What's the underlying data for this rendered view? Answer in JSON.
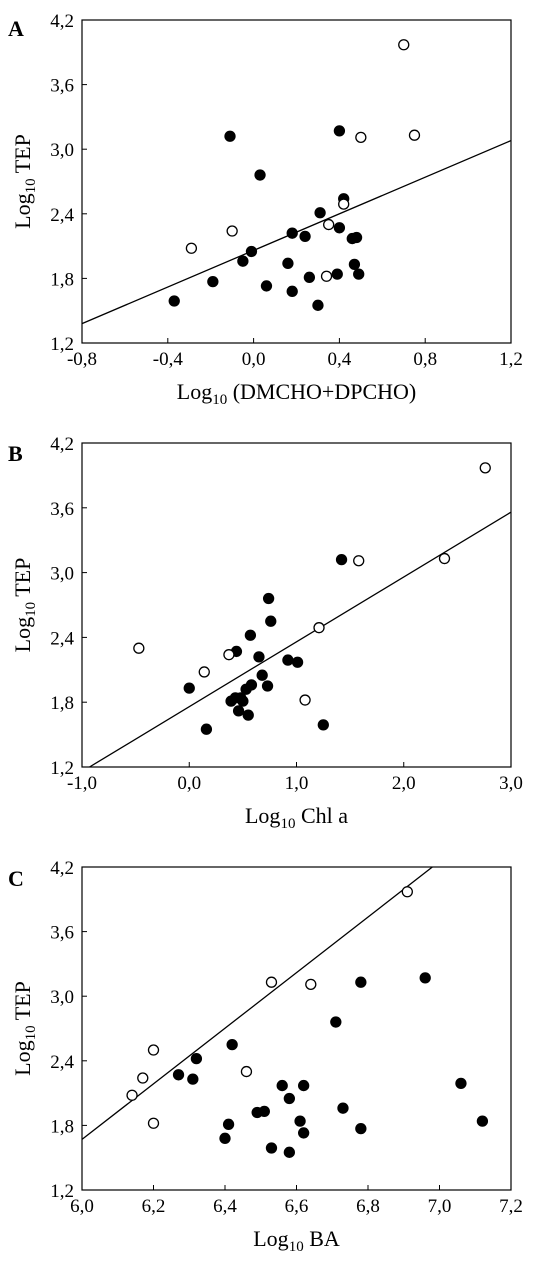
{
  "chart_data": [
    {
      "type": "scatter",
      "panel_label": "A",
      "xlabel_main": "Log",
      "xlabel_sub": "10",
      "xlabel_rest": " (DMCHO+DPCHO)",
      "ylabel_main": "Log",
      "ylabel_sub": "10",
      "ylabel_rest": " TEP",
      "xlim": [
        -0.8,
        1.2
      ],
      "ylim": [
        1.2,
        4.2
      ],
      "xticks": [
        -0.8,
        -0.4,
        0.0,
        0.4,
        0.8,
        1.2
      ],
      "xtick_labels": [
        "-0,8",
        "-0,4",
        "0,0",
        "0,4",
        "0,8",
        "1,2"
      ],
      "yticks": [
        1.2,
        1.8,
        2.4,
        3.0,
        3.6,
        4.2
      ],
      "ytick_labels": [
        "1,2",
        "1,8",
        "2,4",
        "3,0",
        "3,6",
        "4,2"
      ],
      "grid": false,
      "series": [
        {
          "marker": "filled",
          "x": [
            -0.37,
            -0.19,
            -0.11,
            -0.05,
            -0.01,
            0.03,
            0.06,
            0.16,
            0.18,
            0.18,
            0.24,
            0.26,
            0.3,
            0.31,
            0.39,
            0.4,
            0.4,
            0.42,
            0.46,
            0.47,
            0.48,
            0.49
          ],
          "y": [
            1.59,
            1.77,
            3.12,
            1.96,
            2.05,
            2.76,
            1.73,
            1.94,
            1.68,
            2.22,
            2.19,
            1.81,
            1.55,
            2.41,
            1.84,
            2.27,
            3.17,
            2.54,
            2.17,
            1.93,
            2.18,
            1.84
          ]
        },
        {
          "marker": "open",
          "x": [
            -0.29,
            -0.1,
            0.34,
            0.35,
            0.42,
            0.5,
            0.7,
            0.75
          ],
          "y": [
            2.08,
            2.24,
            1.82,
            2.3,
            2.49,
            3.11,
            3.97,
            3.13
          ]
        }
      ],
      "fit_line": {
        "x": [
          -0.8,
          1.2
        ],
        "y": [
          1.38,
          3.08
        ]
      }
    },
    {
      "type": "scatter",
      "panel_label": "B",
      "xlabel_main": "Log",
      "xlabel_sub": "10",
      "xlabel_rest": " Chl a",
      "ylabel_main": "Log",
      "ylabel_sub": "10",
      "ylabel_rest": " TEP",
      "xlim": [
        -1.0,
        3.0
      ],
      "ylim": [
        1.2,
        4.2
      ],
      "xticks": [
        -1.0,
        0.0,
        1.0,
        2.0,
        3.0
      ],
      "xtick_labels": [
        "-1,0",
        "0,0",
        "1,0",
        "2,0",
        "3,0"
      ],
      "yticks": [
        1.2,
        1.8,
        2.4,
        3.0,
        3.6,
        4.2
      ],
      "ytick_labels": [
        "1,2",
        "1,8",
        "2,4",
        "3,0",
        "3,6",
        "4,2"
      ],
      "grid": false,
      "series": [
        {
          "marker": "filled",
          "x": [
            0.0,
            0.16,
            0.39,
            0.43,
            0.44,
            0.46,
            0.48,
            0.5,
            0.53,
            0.55,
            0.57,
            0.58,
            0.65,
            0.68,
            0.73,
            0.74,
            0.76,
            0.92,
            1.01,
            1.25,
            1.42
          ],
          "y": [
            1.93,
            1.55,
            1.81,
            1.84,
            2.27,
            1.72,
            1.84,
            1.81,
            1.92,
            1.68,
            2.42,
            1.96,
            2.22,
            2.05,
            1.95,
            2.76,
            2.55,
            2.19,
            2.17,
            1.59,
            3.12
          ]
        },
        {
          "marker": "open",
          "x": [
            -0.47,
            0.14,
            0.37,
            1.08,
            1.21,
            1.58,
            2.38,
            2.76
          ],
          "y": [
            2.3,
            2.08,
            2.24,
            1.82,
            2.49,
            3.11,
            3.13,
            3.97
          ]
        }
      ],
      "fit_line": {
        "x": [
          -0.93,
          3.0
        ],
        "y": [
          1.2,
          3.56
        ]
      }
    },
    {
      "type": "scatter",
      "panel_label": "C",
      "xlabel_main": "Log",
      "xlabel_sub": "10",
      "xlabel_rest": " BA",
      "ylabel_main": "Log",
      "ylabel_sub": "10",
      "ylabel_rest": " TEP",
      "xlim": [
        6.0,
        7.2
      ],
      "ylim": [
        1.2,
        4.2
      ],
      "xticks": [
        6.0,
        6.2,
        6.4,
        6.6,
        6.8,
        7.0,
        7.2
      ],
      "xtick_labels": [
        "6,0",
        "6,2",
        "6,4",
        "6,6",
        "6,8",
        "7,0",
        "7,2"
      ],
      "yticks": [
        1.2,
        1.8,
        2.4,
        3.0,
        3.6,
        4.2
      ],
      "ytick_labels": [
        "1,2",
        "1,8",
        "2,4",
        "3,0",
        "3,6",
        "4,2"
      ],
      "grid": false,
      "series": [
        {
          "marker": "filled",
          "x": [
            6.27,
            6.31,
            6.32,
            6.4,
            6.41,
            6.42,
            6.49,
            6.51,
            6.53,
            6.56,
            6.58,
            6.58,
            6.61,
            6.62,
            6.62,
            6.71,
            6.73,
            6.78,
            6.78,
            6.96,
            7.06,
            7.12
          ],
          "y": [
            2.27,
            2.23,
            2.42,
            1.68,
            1.81,
            2.55,
            1.92,
            1.93,
            1.59,
            2.17,
            1.55,
            2.05,
            1.84,
            1.73,
            2.17,
            2.76,
            1.96,
            1.77,
            3.13,
            3.17,
            2.19,
            1.84
          ]
        },
        {
          "marker": "open",
          "x": [
            6.14,
            6.17,
            6.2,
            6.2,
            6.46,
            6.53,
            6.64,
            6.91
          ],
          "y": [
            2.08,
            2.24,
            1.82,
            2.5,
            2.3,
            3.13,
            3.11,
            3.97
          ]
        }
      ],
      "fit_line": {
        "x": [
          6.0,
          6.98
        ],
        "y": [
          1.67,
          4.2
        ]
      }
    }
  ]
}
